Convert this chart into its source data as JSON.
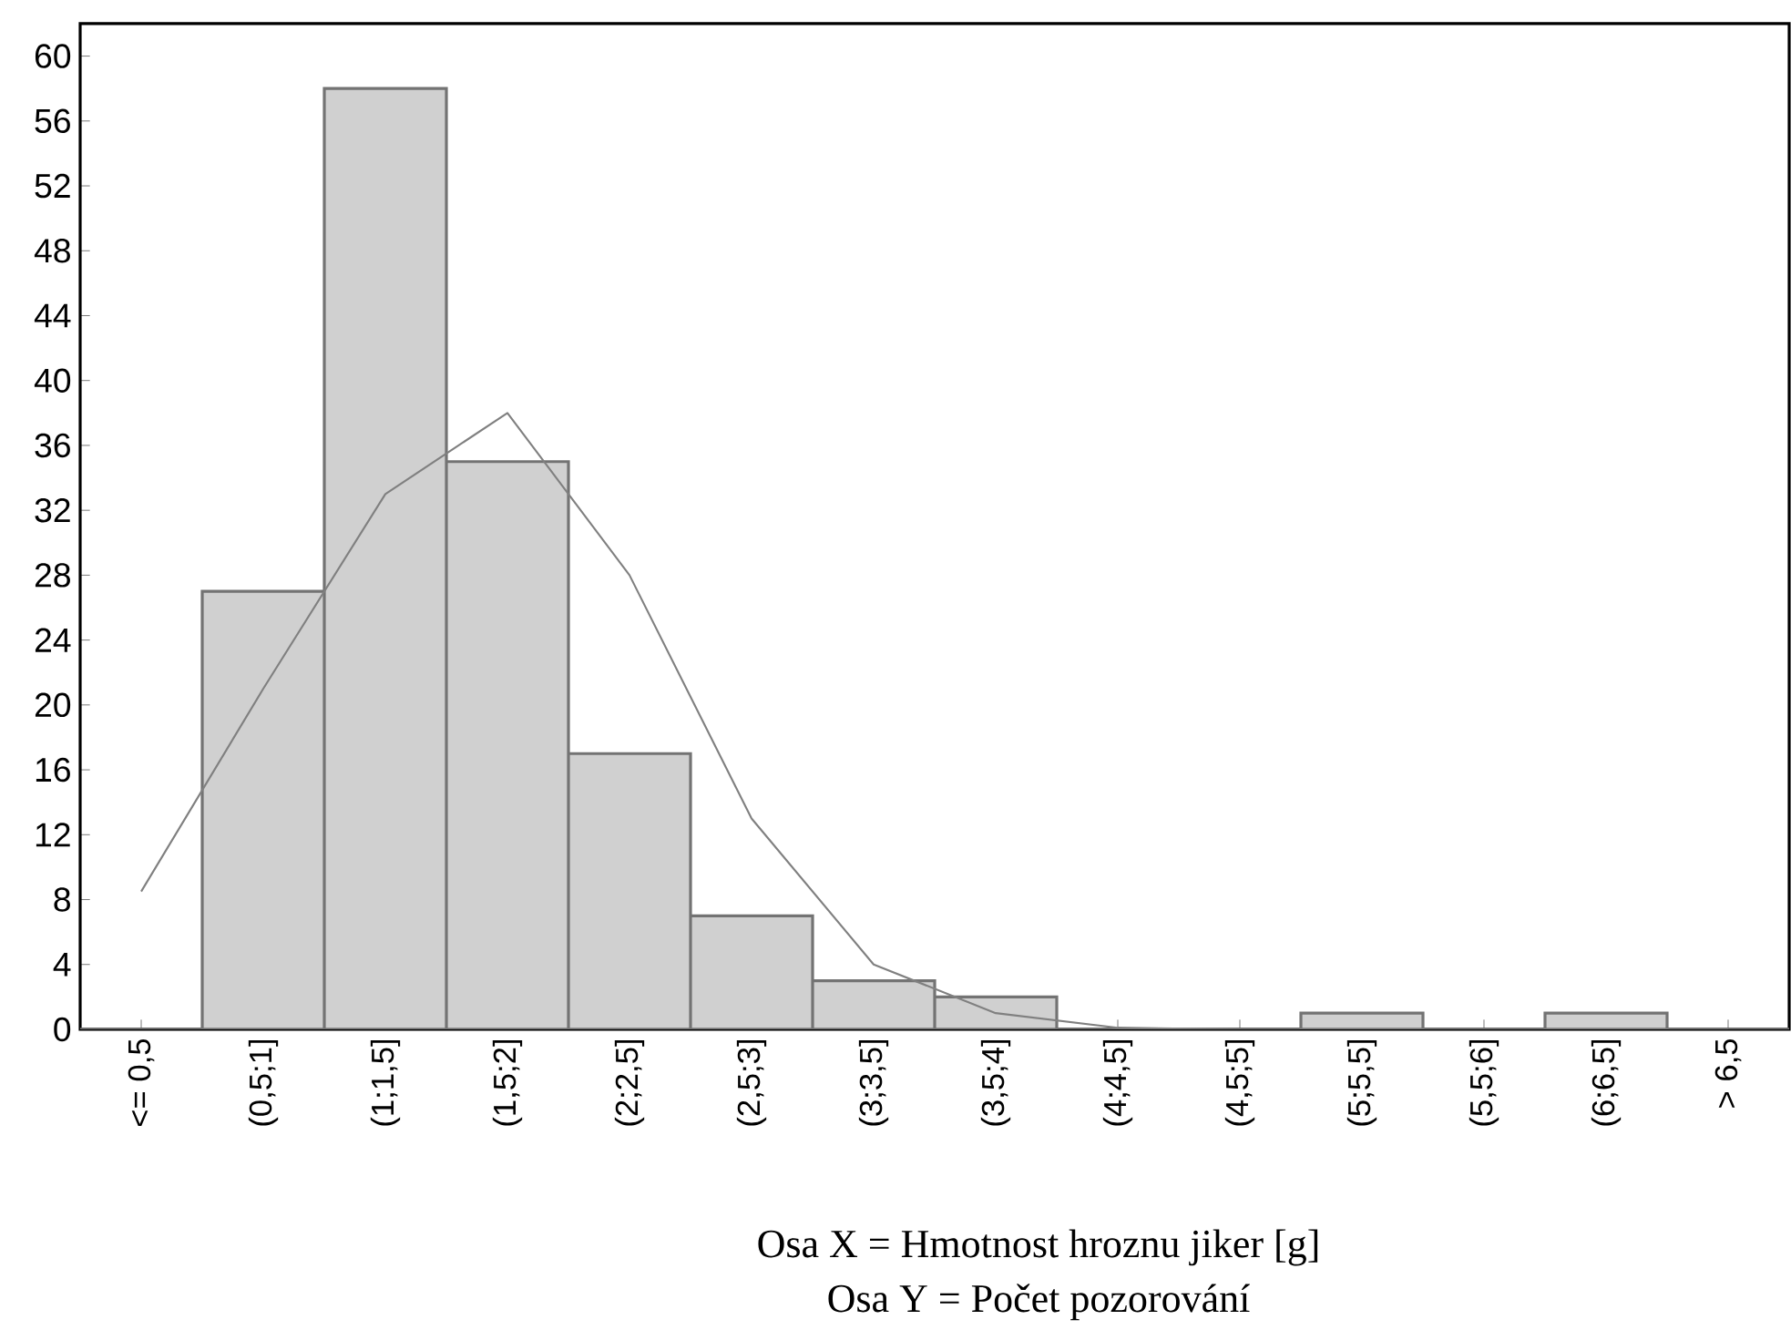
{
  "chart_data": {
    "type": "bar",
    "categories": [
      "<= 0,5",
      "(0,5;1]",
      "(1;1,5]",
      "(1,5;2]",
      "(2;2,5]",
      "(2,5;3]",
      "(3;3,5]",
      "(3,5;4]",
      "(4;4,5]",
      "(4,5;5]",
      "(5;5,5]",
      "(5,5;6]",
      "(6;6,5]",
      "> 6,5"
    ],
    "series": [
      {
        "color": "#d0d0d0",
        "values": [
          0,
          27,
          58,
          35,
          17,
          7,
          3,
          2,
          0,
          0,
          1,
          0,
          1,
          0
        ]
      },
      {
        "type": "line",
        "color": "#808080",
        "values": [
          8.5,
          21,
          33,
          38,
          28,
          13,
          4,
          1,
          0.1,
          0,
          0,
          0,
          0,
          0
        ]
      }
    ],
    "ylim": [
      0,
      62
    ],
    "yticks": [
      0,
      4,
      8,
      12,
      16,
      20,
      24,
      28,
      32,
      36,
      40,
      44,
      48,
      52,
      56,
      60
    ],
    "annotations": [
      "Osa X = Hmotnost hroznu jiker [g]",
      "Osa Y = Počet pozorování"
    ]
  }
}
